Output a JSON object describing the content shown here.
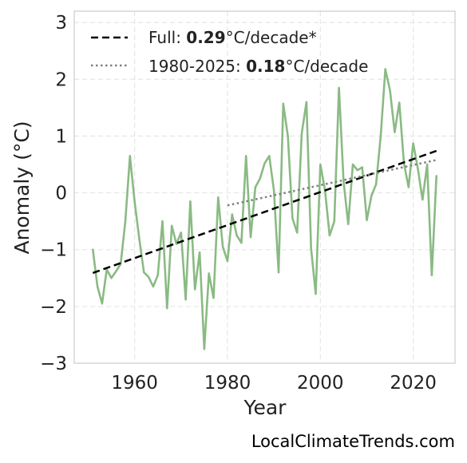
{
  "chart_data": {
    "type": "line",
    "xlabel": "Year",
    "ylabel": "Anomaly (°C)",
    "xlim": [
      1947,
      2029
    ],
    "ylim": [
      -3,
      3.2
    ],
    "x_ticks": [
      1960,
      1980,
      2000,
      2020
    ],
    "y_ticks": [
      3,
      2,
      1,
      0,
      -1,
      -2,
      -3
    ],
    "y_tick_labels": [
      "3",
      "2",
      "1",
      "0",
      "−1",
      "−2",
      "−3"
    ],
    "grid": true,
    "legend_placement": "top-left",
    "series": [
      {
        "kind": "data",
        "color": "#8aba83",
        "x": [
          1951,
          1952,
          1953,
          1954,
          1955,
          1956,
          1957,
          1958,
          1959,
          1960,
          1961,
          1962,
          1963,
          1964,
          1965,
          1966,
          1967,
          1968,
          1969,
          1970,
          1971,
          1972,
          1973,
          1974,
          1975,
          1976,
          1977,
          1978,
          1979,
          1980,
          1981,
          1982,
          1983,
          1984,
          1985,
          1986,
          1987,
          1988,
          1989,
          1990,
          1991,
          1992,
          1993,
          1994,
          1995,
          1996,
          1997,
          1998,
          1999,
          2000,
          2001,
          2002,
          2003,
          2004,
          2005,
          2006,
          2007,
          2008,
          2009,
          2010,
          2011,
          2012,
          2013,
          2014,
          2015,
          2016,
          2017,
          2018,
          2019,
          2020,
          2021,
          2022,
          2023,
          2024,
          2025
        ],
        "values": [
          -1.0,
          -1.65,
          -1.95,
          -1.35,
          -1.5,
          -1.38,
          -1.25,
          -0.5,
          0.65,
          -0.15,
          -0.8,
          -1.4,
          -1.48,
          -1.65,
          -1.45,
          -0.5,
          -2.03,
          -0.58,
          -0.9,
          -0.7,
          -1.88,
          -0.15,
          -1.7,
          -1.05,
          -2.75,
          -1.42,
          -1.85,
          -0.08,
          -0.95,
          -1.2,
          -0.38,
          -0.75,
          -0.88,
          0.65,
          -0.78,
          0.1,
          0.25,
          0.52,
          0.65,
          0.05,
          -1.4,
          1.57,
          1.0,
          -0.45,
          -0.7,
          1.05,
          1.6,
          -0.98,
          -1.78,
          0.5,
          0.05,
          -0.75,
          -0.5,
          1.85,
          0.2,
          -0.55,
          0.5,
          0.4,
          0.45,
          -0.48,
          -0.05,
          0.15,
          1.0,
          2.18,
          1.8,
          1.07,
          1.59,
          0.52,
          0.1,
          0.87,
          0.42,
          -0.12,
          0.5,
          -1.45,
          0.3
        ]
      },
      {
        "kind": "trend",
        "name": "Full",
        "rate": "0.29",
        "unit": "°C/decade*",
        "style": "dashed",
        "color": "#000000",
        "x": [
          1951,
          2025
        ],
        "values": [
          -1.41,
          0.74
        ]
      },
      {
        "kind": "trend",
        "name": "1980-2025",
        "rate": "0.18",
        "unit": "°C/decade",
        "style": "dotted",
        "color": "#808080",
        "x": [
          1980,
          2025
        ],
        "values": [
          -0.22,
          0.58
        ]
      }
    ]
  },
  "legend": {
    "entries": [
      {
        "label": "Full: ",
        "bold": "0.29",
        "suffix": "°C/decade*"
      },
      {
        "label": "1980-2025: ",
        "bold": "0.18",
        "suffix": "°C/decade"
      }
    ]
  },
  "watermark": "LocalClimateTrends.com"
}
